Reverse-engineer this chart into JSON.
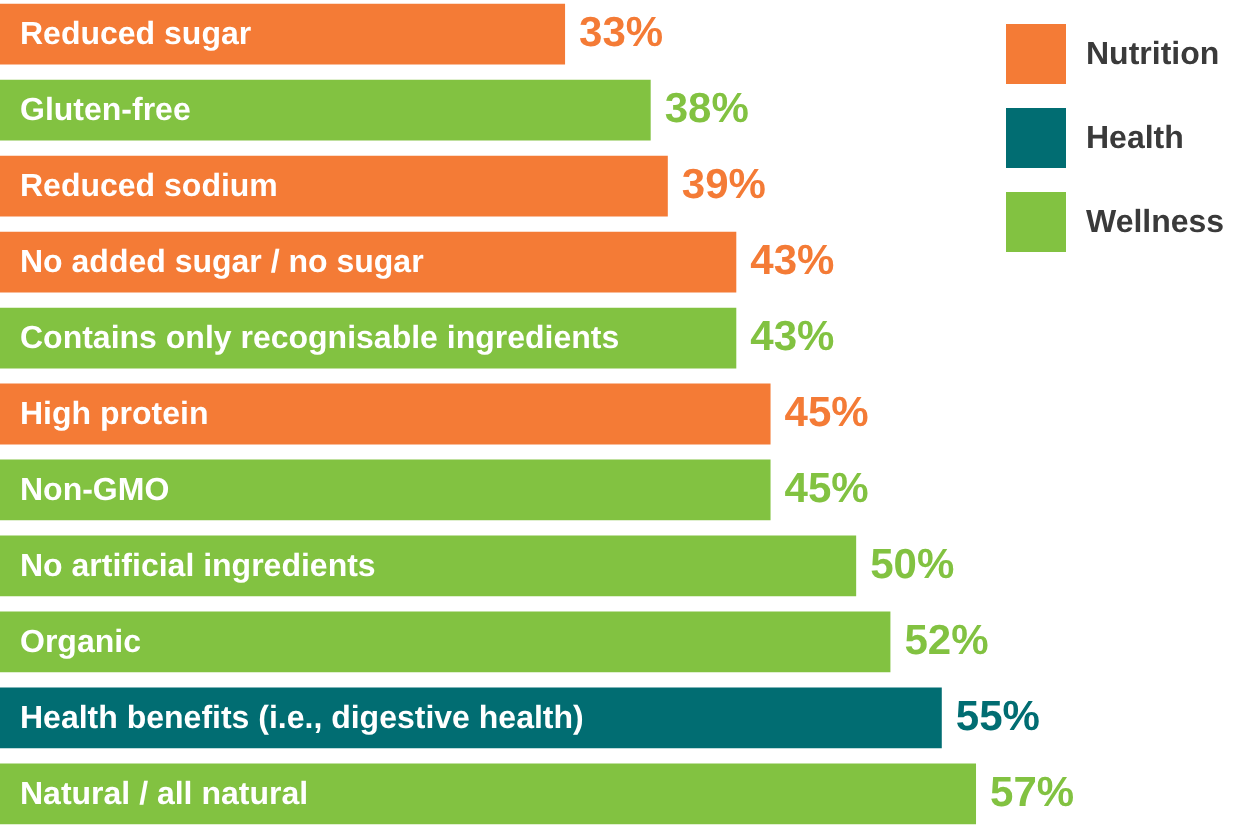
{
  "chart_data": {
    "type": "bar",
    "orientation": "horizontal",
    "categories": [
      "Reduced sugar",
      "Gluten-free",
      "Reduced sodium",
      "No added sugar / no sugar",
      "Contains only recognisable ingredients",
      "High protein",
      "Non-GMO",
      "No artificial ingredients",
      "Organic",
      "Health benefits (i.e., digestive health)",
      "Natural / all natural"
    ],
    "series": [
      {
        "name": "Nutrition",
        "color": "#f47b36",
        "values": [
          33,
          null,
          39,
          43,
          null,
          45,
          null,
          null,
          null,
          null,
          null
        ],
        "value_labels": [
          "33%",
          null,
          "39%",
          "43%",
          null,
          "45%",
          null,
          null,
          null,
          null,
          null
        ]
      },
      {
        "name": "Health",
        "color": "#016d72",
        "values": [
          null,
          null,
          null,
          null,
          null,
          null,
          null,
          null,
          null,
          55,
          null
        ],
        "value_labels": [
          null,
          null,
          null,
          null,
          null,
          null,
          null,
          null,
          null,
          "55%",
          null
        ]
      },
      {
        "name": "Wellness",
        "color": "#82c241",
        "values": [
          null,
          38,
          null,
          null,
          43,
          null,
          45,
          50,
          52,
          null,
          57
        ],
        "value_labels": [
          null,
          "38%",
          null,
          null,
          "43%",
          null,
          "45%",
          "50%",
          "52%",
          null,
          "57%"
        ]
      }
    ],
    "xlim": [
      0,
      73
    ],
    "tick_labels": false,
    "legend": "top right"
  }
}
